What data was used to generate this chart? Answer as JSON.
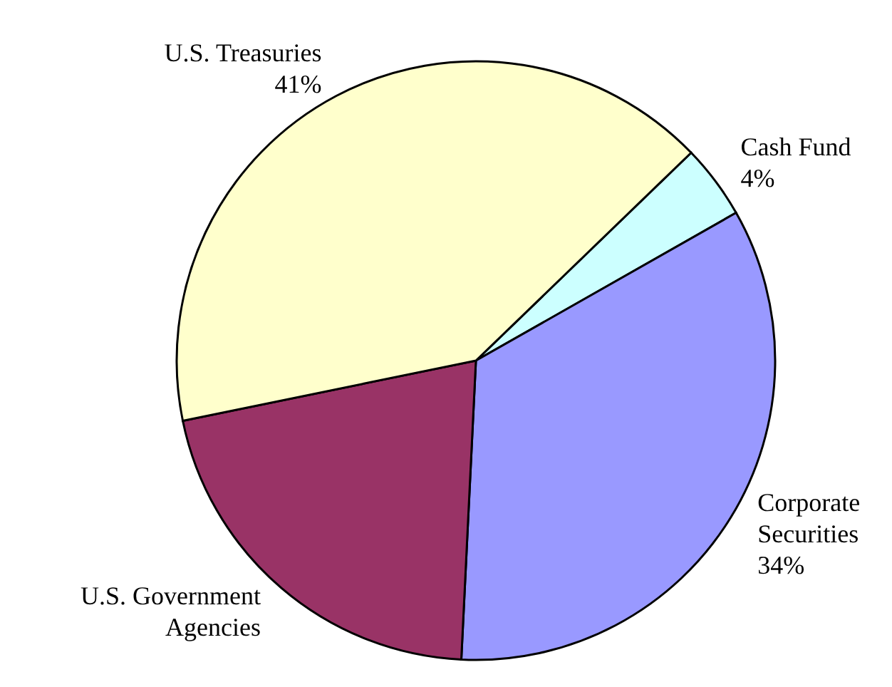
{
  "chart_data": {
    "type": "pie",
    "categories": [
      "Cash Fund",
      "Corporate Securities",
      "U.S. Government Agencies",
      "U.S. Treasuries"
    ],
    "values": [
      4,
      34,
      21,
      41
    ],
    "value_labels": [
      "4%",
      "34%",
      null,
      "41%"
    ],
    "colors": [
      "#ccffff",
      "#9999ff",
      "#993366",
      "#ffffcc"
    ],
    "legend": false
  }
}
